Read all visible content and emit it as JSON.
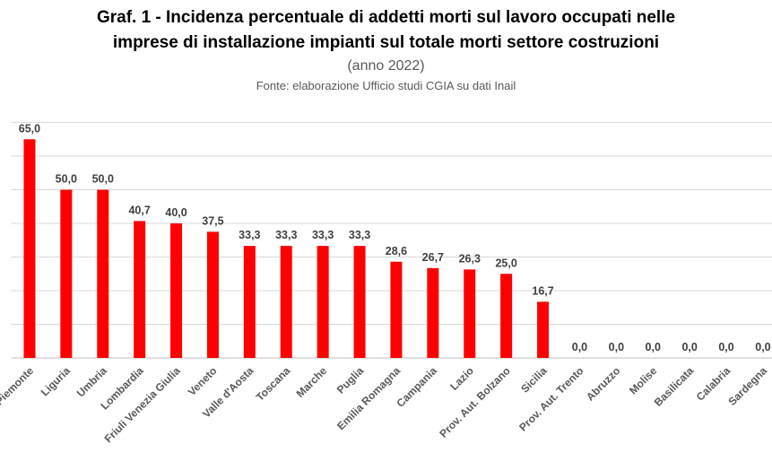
{
  "chart_data": {
    "type": "bar",
    "title_line1": "Graf. 1 - Incidenza percentuale di addetti morti sul lavoro occupati nelle",
    "title_line2": "imprese di installazione impianti sul totale morti settore costruzioni",
    "subtitle": "(anno 2022)",
    "source": "Fonte: elaborazione Ufficio studi CGIA su dati Inail",
    "categories": [
      "Piemonte",
      "Liguria",
      "Umbria",
      "Lombardia",
      "Friuli Venezia Giulia",
      "Veneto",
      "Valle d'Aosta",
      "Toscana",
      "Marche",
      "Puglia",
      "Emilia Romagna",
      "Campania",
      "Lazio",
      "Prov. Aut. Bolzano",
      "Sicilia",
      "Prov. Aut. Trento",
      "Abruzzo",
      "Molise",
      "Basilicata",
      "Calabria",
      "Sardegna"
    ],
    "values": [
      65.0,
      50.0,
      50.0,
      40.7,
      40.0,
      37.5,
      33.3,
      33.3,
      33.3,
      33.3,
      28.6,
      26.7,
      26.3,
      25.0,
      16.7,
      0.0,
      0.0,
      0.0,
      0.0,
      0.0,
      0.0
    ],
    "data_labels": [
      "65,0",
      "50,0",
      "50,0",
      "40,7",
      "40,0",
      "37,5",
      "33,3",
      "33,3",
      "33,3",
      "33,3",
      "28,6",
      "26,7",
      "26,3",
      "25,0",
      "16,7",
      "0,0",
      "0,0",
      "0,0",
      "0,0",
      "0,0",
      "0,0"
    ],
    "ylim": [
      0,
      70
    ],
    "grid": true,
    "bar_color": "#FF0000",
    "xlabel": "",
    "ylabel": ""
  }
}
